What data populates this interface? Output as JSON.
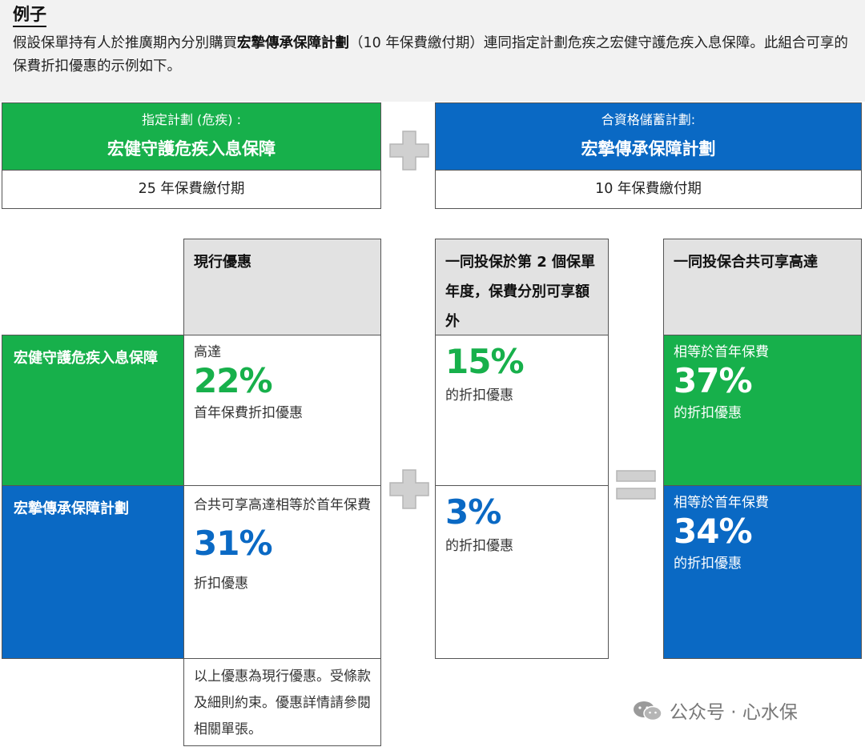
{
  "example": {
    "title": "例子",
    "desc_before": "假設保單持有人於推廣期內分別購買",
    "desc_bold": "宏摯傳承保障計劃",
    "desc_after": "（10 年保費繳付期）連同指定計劃危疾之宏健守護危疾入息保障。此組合可享的保費折扣優惠的示例如下。"
  },
  "plans": {
    "left": {
      "label": "指定計劃 (危疾) :",
      "name": "宏健守護危疾入息保障",
      "term": "25 年保費繳付期"
    },
    "right": {
      "label": "合資格儲蓄計劃:",
      "name": "宏摯傳承保障計劃",
      "term": "10 年保費繳付期"
    }
  },
  "table": {
    "col1": "現行優惠",
    "col2": "一同投保於第 2 個保單年度，保費分別可享額外",
    "col3": "一同投保合共可享高達",
    "row1": {
      "label": "宏健守護危疾入息保障",
      "current_pre": "高達",
      "current_pct": "22%",
      "current_post": "首年保費折扣優惠",
      "extra_pct": "15%",
      "extra_post": "的折扣優惠",
      "total_pre": "相等於首年保費",
      "total_pct": "37%",
      "total_post": "的折扣優惠"
    },
    "row2": {
      "label": "宏摯傳承保障計劃",
      "current_pre": "合共可享高達相等於首年保費",
      "current_pct": "31%",
      "current_post": "折扣優惠",
      "extra_pct": "3%",
      "extra_post": "的折扣優惠",
      "total_pre": "相等於首年保費",
      "total_pct": "34%",
      "total_post": "的折扣優惠"
    },
    "note": "以上優惠為現行優惠。受條款及細則約束。優惠詳情請參閱相關單張。"
  },
  "watermark": "公众号 · 心水保",
  "colors": {
    "green": "#17b04b",
    "blue": "#0a69c4",
    "gray_header": "#e2e2e2",
    "operator": "#d0d0d0"
  },
  "icons": {
    "plus": "plus-icon",
    "equals": "equals-icon",
    "wechat": "wechat-icon"
  }
}
